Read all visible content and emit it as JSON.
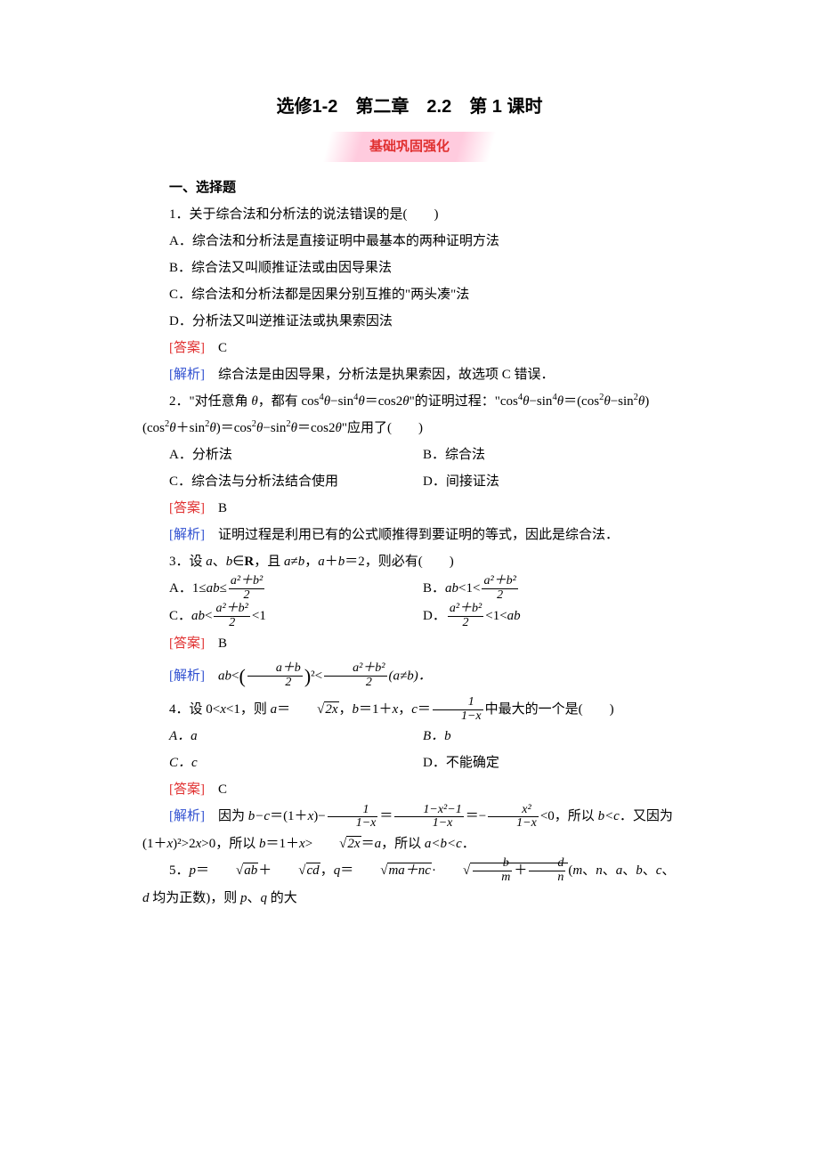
{
  "colors": {
    "answer_label": "#e03030",
    "explain_label": "#3050d0",
    "banner_text": "#e03030",
    "banner_bg": "#ffc8dc",
    "body_text": "#000000",
    "background": "#ffffff"
  },
  "typography": {
    "title_fontsize": 20,
    "body_fontsize": 15,
    "title_font": "SimHei",
    "body_font": "SimSun"
  },
  "title": "选修1-2　第二章　2.2　第 1 课时",
  "banner": "基础巩固强化",
  "section_heading": "一、选择题",
  "q1": {
    "stem": "1．关于综合法和分析法的说法错误的是(　　)",
    "optA": "A．综合法和分析法是直接证明中最基本的两种证明方法",
    "optB": "B．综合法又叫顺推证法或由因导果法",
    "optC": "C．综合法和分析法都是因果分别互推的\"两头凑\"法",
    "optD": "D．分析法又叫逆推证法或执果索因法",
    "answer_label": "[答案]",
    "answer": "C",
    "explain_label": "[解析]",
    "explain": "综合法是由因导果，分析法是执果索因，故选项 C 错误．"
  },
  "q2": {
    "stem_a": "2．\"对任意角 ",
    "stem_b": "，都有 cos",
    "stem_c": "−sin",
    "stem_d": "＝cos2",
    "stem_e": "\"的证明过程：\"cos",
    "stem_f": "−sin",
    "stem_g": "＝(cos",
    "stem_h": "−sin",
    "stem_i": ")(cos",
    "stem_j": "＋sin",
    "stem_k": ")＝cos",
    "stem_l": "−sin",
    "stem_m": "＝cos2",
    "stem_n": "\"应用了(　　)",
    "theta": "θ",
    "optA": "A．分析法",
    "optB": "B．综合法",
    "optC": "C．综合法与分析法结合使用",
    "optD": "D．间接证法",
    "answer_label": "[答案]",
    "answer": "B",
    "explain_label": "[解析]",
    "explain": "证明过程是利用已有的公式顺推得到要证明的等式，因此是综合法．"
  },
  "q3": {
    "stem_a": "3．设 ",
    "stem_b": "、",
    "stem_c": "∈",
    "stem_d": "R",
    "stem_e": "，且 ",
    "stem_f": "≠",
    "stem_g": "，",
    "stem_h": "＋",
    "stem_i": "＝2，则必有(　　)",
    "a": "a",
    "b": "b",
    "optA_pre": "A．1≤",
    "optA_mid": "ab",
    "optA_post": "≤",
    "optB_pre": "B．",
    "optB_mid": "ab",
    "optB_post": "<1<",
    "optC_pre": "C．",
    "optC_mid": "ab",
    "optC_post": "<",
    "optC_tail": "<1",
    "optD_pre": "D．",
    "optD_post": "<1<",
    "optD_mid": "ab",
    "frac_num": "a²＋b²",
    "frac_den": "2",
    "answer_label": "[答案]",
    "answer": "B",
    "explain_label": "[解析]",
    "explain_a": "ab",
    "explain_b": "<",
    "explain_c": "a＋b",
    "explain_d": "2",
    "explain_e": "²<",
    "explain_f": "a²＋b²",
    "explain_g": "2",
    "explain_h": "(a≠b)．"
  },
  "q4": {
    "stem_a": "4．设 0<",
    "stem_b": "x",
    "stem_c": "<1，则 ",
    "stem_d": "a",
    "stem_e": "＝",
    "stem_sqrt": "2x",
    "stem_f": "，",
    "stem_g": "b",
    "stem_h": "＝1＋",
    "stem_i": "x",
    "stem_j": "，",
    "stem_k": "c",
    "stem_l": "＝",
    "stem_frac_num": "1",
    "stem_frac_den": "1−x",
    "stem_m": "中最大的一个是(　　)",
    "optA": "A．a",
    "optB": "B．b",
    "optC": "C．c",
    "optD": "D．不能确定",
    "answer_label": "[答案]",
    "answer": "C",
    "explain_label": "[解析]",
    "exp_a": "因为 ",
    "exp_bc": "b−c",
    "exp_eq1": "＝(1＋",
    "exp_x": "x",
    "exp_eq2": ")−",
    "exp_f1n": "1",
    "exp_f1d": "1−x",
    "exp_eq3": "＝",
    "exp_f2n": "1−x²−1",
    "exp_f2d": "1−x",
    "exp_eq4": "＝−",
    "exp_f3n": "x²",
    "exp_f3d": "1−x",
    "exp_eq5": "<0，所以 ",
    "exp_bltc": "b<c",
    "exp_eq6": "．又因为(1＋",
    "exp_eq7": ")²>2",
    "exp_eq8": ">0，所以 ",
    "exp_eq9": "b",
    "exp_eq10": "＝1＋",
    "exp_eq11": ">",
    "exp_sqrt": "2x",
    "exp_eq12": "＝",
    "exp_eq13": "a",
    "exp_eq14": "，所以 ",
    "exp_abc": "a<b<c",
    "exp_period": "．"
  },
  "q5": {
    "stem_a": "5．",
    "p": "p",
    "eq1": "＝",
    "sqrt_ab": "ab",
    "plus1": "＋",
    "sqrt_cd": "cd",
    "comma1": "，",
    "q": "q",
    "eq2": "＝",
    "sqrt_manc": "ma＋nc",
    "dot": "·",
    "frac_bm": "b",
    "frac_m": "m",
    "plus2": "＋",
    "frac_dn": "d",
    "frac_n": "n",
    "paren": "(",
    "m": "m",
    "n2": "n",
    "a2": "a",
    "b2": "b",
    "c2": "c",
    "d2": "d",
    "cond": " 均为正数)，则 ",
    "p2": "p",
    "q2": "q",
    "tail": " 的大",
    "sep": "、"
  }
}
